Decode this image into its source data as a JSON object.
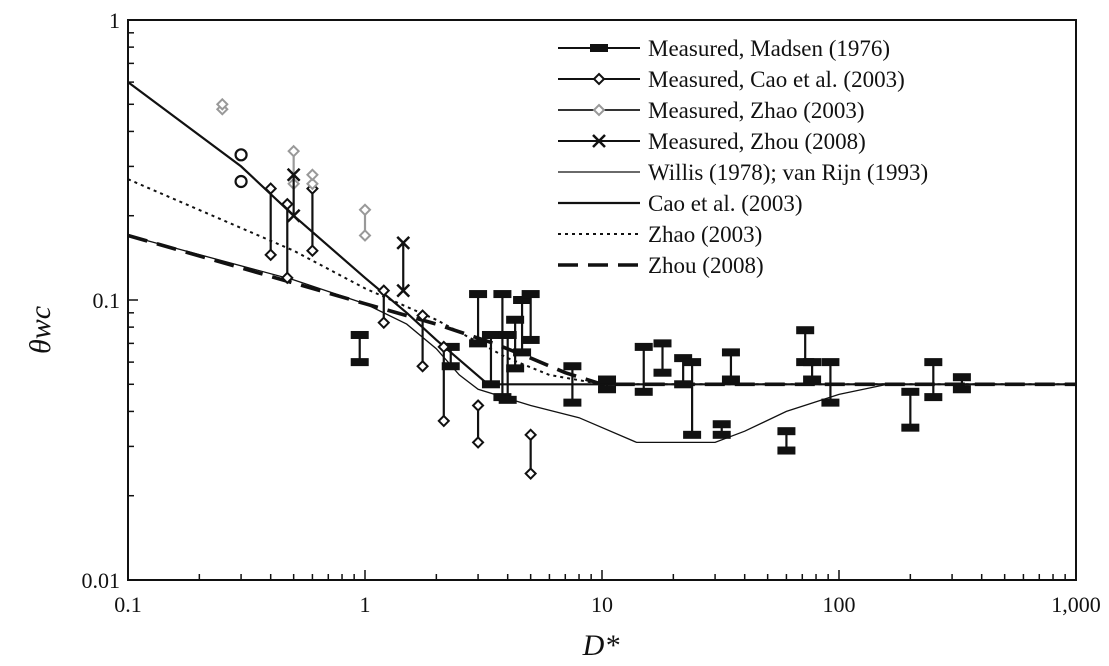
{
  "chart_data": {
    "type": "scatter",
    "title": "",
    "xlabel": "D*",
    "ylabel": "θwc",
    "xscale": "log",
    "yscale": "log",
    "xlim": [
      0.1,
      1000
    ],
    "ylim": [
      0.01,
      1
    ],
    "x_ticks": [
      {
        "value": 0.1,
        "label": "0.1"
      },
      {
        "value": 1,
        "label": "1"
      },
      {
        "value": 10,
        "label": "10"
      },
      {
        "value": 100,
        "label": "100"
      },
      {
        "value": 1000,
        "label": "1,000"
      }
    ],
    "y_ticks": [
      {
        "value": 0.01,
        "label": "0.01"
      },
      {
        "value": 0.1,
        "label": "0.1"
      },
      {
        "value": 1,
        "label": "1"
      }
    ],
    "grid": false,
    "legend_position": "top-right",
    "legend": [
      {
        "label": "Measured, Madsen (1976)",
        "style": "madsen"
      },
      {
        "label": "Measured, Cao et al. (2003)",
        "style": "cao_meas"
      },
      {
        "label": "Measured, Zhao (2003)",
        "style": "zhao_meas"
      },
      {
        "label": "Measured, Zhou (2008)",
        "style": "zhou_meas"
      },
      {
        "label": "Willis (1978); van Rijn (1993)",
        "style": "willis"
      },
      {
        "label": "Cao et al. (2003)",
        "style": "cao_curve"
      },
      {
        "label": "Zhao (2003)",
        "style": "zhao_curve"
      },
      {
        "label": "Zhou (2008)",
        "style": "zhou_curve"
      }
    ],
    "curves": [
      {
        "name": "Willis (1978); van Rijn (1993)",
        "style": "willis",
        "color": "#111111",
        "points": [
          [
            0.1,
            0.17
          ],
          [
            0.5,
            0.118
          ],
          [
            1,
            0.097
          ],
          [
            1.5,
            0.082
          ],
          [
            2,
            0.067
          ],
          [
            2.5,
            0.054
          ],
          [
            3,
            0.048
          ],
          [
            5,
            0.042
          ],
          [
            8,
            0.038
          ],
          [
            14,
            0.031
          ],
          [
            20,
            0.031
          ],
          [
            30,
            0.031
          ],
          [
            40,
            0.034
          ],
          [
            60,
            0.04
          ],
          [
            100,
            0.046
          ],
          [
            160,
            0.05
          ],
          [
            1000,
            0.05
          ]
        ]
      },
      {
        "name": "Cao et al. (2003)",
        "style": "cao_curve",
        "color": "#111111",
        "points": [
          [
            0.1,
            0.6
          ],
          [
            0.3,
            0.3
          ],
          [
            0.5,
            0.2
          ],
          [
            1,
            0.12
          ],
          [
            1.5,
            0.09
          ],
          [
            2,
            0.072
          ],
          [
            3.3,
            0.05
          ],
          [
            1000,
            0.05
          ]
        ]
      },
      {
        "name": "Zhao (2003)",
        "style": "zhao_curve",
        "color": "#111111",
        "points": [
          [
            0.1,
            0.27
          ],
          [
            0.5,
            0.15
          ],
          [
            1,
            0.11
          ],
          [
            2,
            0.085
          ],
          [
            4,
            0.062
          ],
          [
            6,
            0.054
          ],
          [
            10,
            0.05
          ],
          [
            1000,
            0.05
          ]
        ]
      },
      {
        "name": "Zhou (2008)",
        "style": "zhou_curve",
        "color": "#111111",
        "points": [
          [
            0.1,
            0.17
          ],
          [
            0.5,
            0.115
          ],
          [
            1,
            0.097
          ],
          [
            2,
            0.082
          ],
          [
            3.5,
            0.07
          ],
          [
            5,
            0.062
          ],
          [
            7,
            0.055
          ],
          [
            10,
            0.05
          ],
          [
            1000,
            0.05
          ]
        ]
      }
    ],
    "series": [
      {
        "name": "Measured, Madsen (1976)",
        "style": "madsen",
        "color": "#111111",
        "ranges": [
          [
            0.95,
            0.06,
            0.075
          ],
          [
            2.3,
            0.058,
            0.068
          ],
          [
            3,
            0.07,
            0.105
          ],
          [
            3.4,
            0.05,
            0.075
          ],
          [
            3.8,
            0.045,
            0.105
          ],
          [
            4,
            0.044,
            0.075
          ],
          [
            4.3,
            0.057,
            0.085
          ],
          [
            4.6,
            0.065,
            0.1
          ],
          [
            5,
            0.072,
            0.105
          ],
          [
            7.5,
            0.043,
            0.058
          ],
          [
            10.5,
            0.048,
            0.052
          ],
          [
            15,
            0.047,
            0.068
          ],
          [
            18,
            0.055,
            0.07
          ],
          [
            22,
            0.05,
            0.062
          ],
          [
            24,
            0.033,
            0.06
          ],
          [
            32,
            0.033,
            0.036
          ],
          [
            35,
            0.052,
            0.065
          ],
          [
            60,
            0.029,
            0.034
          ],
          [
            72,
            0.06,
            0.078
          ],
          [
            77,
            0.052,
            0.06
          ],
          [
            92,
            0.043,
            0.06
          ],
          [
            200,
            0.035,
            0.047
          ],
          [
            250,
            0.045,
            0.06
          ],
          [
            330,
            0.048,
            0.053
          ]
        ]
      },
      {
        "name": "Measured, Cao et al. (2003)",
        "style": "cao_meas",
        "color": "#111111",
        "ranges": [
          [
            0.4,
            0.145,
            0.25
          ],
          [
            0.47,
            0.12,
            0.22
          ],
          [
            0.6,
            0.15,
            0.25
          ],
          [
            1.2,
            0.083,
            0.108
          ],
          [
            1.75,
            0.058,
            0.088
          ],
          [
            2.15,
            0.037,
            0.068
          ],
          [
            3,
            0.031,
            0.042
          ],
          [
            5,
            0.024,
            0.033
          ]
        ]
      },
      {
        "name": "Measured, Zhao (2003)",
        "style": "zhao_meas",
        "color": "#999999",
        "ranges": [
          [
            0.25,
            0.48,
            0.5
          ],
          [
            0.5,
            0.26,
            0.34
          ],
          [
            0.6,
            0.26,
            0.28
          ],
          [
            1,
            0.17,
            0.21
          ]
        ]
      },
      {
        "name": "Measured, Zhou (2008)",
        "style": "zhou_meas",
        "color": "#111111",
        "ranges": [
          [
            0.5,
            0.2,
            0.28
          ],
          [
            1.45,
            0.108,
            0.16
          ]
        ]
      }
    ],
    "extra_markers": [
      {
        "x": 0.3,
        "y": 0.33,
        "shape": "circle"
      },
      {
        "x": 0.3,
        "y": 0.265,
        "shape": "circle"
      }
    ]
  }
}
